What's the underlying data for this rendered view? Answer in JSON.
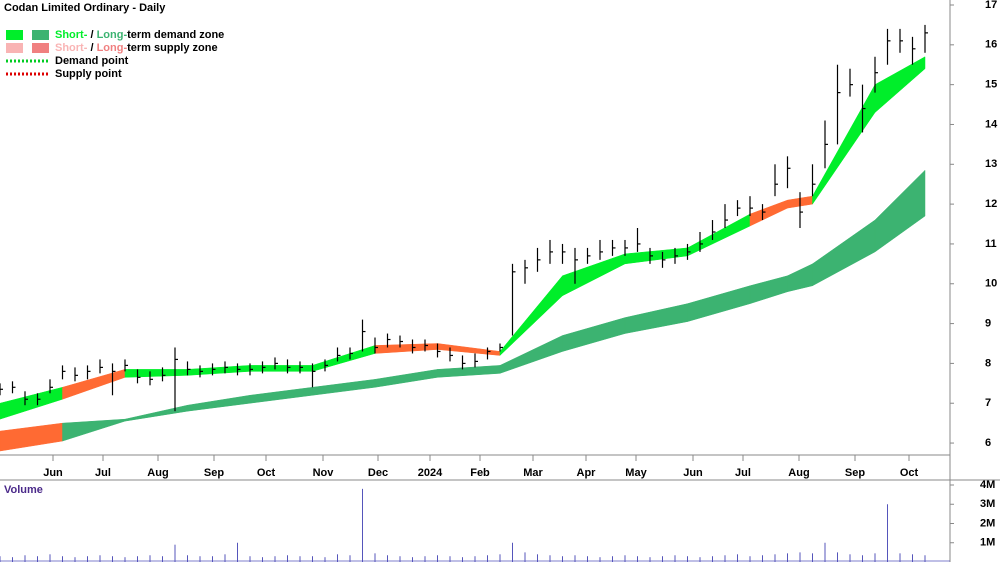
{
  "chart_data": {
    "type": "ohlc",
    "title": "Codan Limited Ordinary - Daily",
    "legend": [
      {
        "swatches": [
          "#00ee2a",
          "#3cb371"
        ],
        "parts": [
          {
            "text": "Short-",
            "color": "#00ee2a"
          },
          {
            "text": " / ",
            "color": "#000000"
          },
          {
            "text": "Long-",
            "color": "#3cb371"
          },
          {
            "text": "term demand zone",
            "color": "#000000"
          }
        ]
      },
      {
        "swatches": [
          "#f9b4b4",
          "#f08080"
        ],
        "parts": [
          {
            "text": "Short-",
            "color": "#f9b4b4"
          },
          {
            "text": " / ",
            "color": "#000000"
          },
          {
            "text": "Long-",
            "color": "#f08080"
          },
          {
            "text": "term supply zone",
            "color": "#000000"
          }
        ]
      },
      {
        "line": "#00cc22",
        "parts": [
          {
            "text": "Demand point",
            "color": "#000000"
          }
        ]
      },
      {
        "line": "#dd0000",
        "parts": [
          {
            "text": "Supply point",
            "color": "#000000"
          }
        ]
      }
    ],
    "x": [
      0,
      1,
      2,
      3,
      4,
      5,
      6,
      7,
      8,
      9,
      10,
      11,
      12,
      13,
      14,
      15,
      16,
      17,
      18,
      19,
      20,
      21,
      22,
      23,
      24,
      25,
      26,
      27,
      28,
      29,
      30,
      31,
      32,
      33,
      34,
      35,
      36,
      37,
      38,
      39,
      40,
      41,
      42,
      43,
      44,
      45,
      46,
      47,
      48,
      49,
      50,
      51,
      52,
      53,
      54,
      55,
      56,
      57,
      58,
      59,
      60,
      61,
      62,
      63,
      64,
      65,
      66,
      67,
      68,
      69,
      70,
      71,
      72,
      73,
      74
    ],
    "xlim": [
      0,
      76
    ],
    "xticks": [
      {
        "value": 4.24,
        "label": "Jun"
      },
      {
        "value": 8.24,
        "label": "Jul"
      },
      {
        "value": 12.64,
        "label": "Aug"
      },
      {
        "value": 17.12,
        "label": "Sep"
      },
      {
        "value": 21.28,
        "label": "Oct"
      },
      {
        "value": 25.84,
        "label": "Nov"
      },
      {
        "value": 30.24,
        "label": "Dec"
      },
      {
        "value": 34.4,
        "label": "2024"
      },
      {
        "value": 38.4,
        "label": "Feb"
      },
      {
        "value": 42.64,
        "label": "Mar"
      },
      {
        "value": 46.88,
        "label": "Apr"
      },
      {
        "value": 50.88,
        "label": "May"
      },
      {
        "value": 55.44,
        "label": "Jun"
      },
      {
        "value": 59.44,
        "label": "Jul"
      },
      {
        "value": 63.92,
        "label": "Aug"
      },
      {
        "value": 68.4,
        "label": "Sep"
      },
      {
        "value": 72.72,
        "label": "Oct"
      }
    ],
    "ylim": [
      5.7,
      17
    ],
    "yticks": [
      6,
      7,
      8,
      9,
      10,
      11,
      12,
      13,
      14,
      15,
      16,
      17
    ],
    "bar_color": "#000000",
    "high": [
      7.5,
      7.55,
      7.3,
      7.25,
      7.6,
      7.95,
      7.9,
      7.95,
      8.1,
      8.0,
      8.1,
      7.85,
      7.8,
      7.9,
      8.4,
      8.05,
      7.95,
      8.0,
      8.05,
      8.0,
      8.0,
      8.05,
      8.15,
      8.1,
      8.05,
      8.0,
      8.1,
      8.4,
      8.4,
      9.1,
      8.65,
      8.75,
      8.7,
      8.6,
      8.6,
      8.5,
      8.4,
      8.2,
      8.25,
      8.4,
      8.5,
      10.5,
      10.6,
      10.9,
      11.1,
      11.0,
      10.9,
      10.9,
      11.1,
      11.1,
      11.1,
      11.4,
      10.9,
      10.8,
      10.9,
      11.0,
      11.3,
      11.6,
      12.0,
      12.1,
      12.2,
      12.0,
      13.0,
      13.2,
      12.3,
      13.0,
      14.1,
      15.5,
      15.4,
      15.0,
      15.7,
      16.4,
      16.4,
      16.2,
      16.5
    ],
    "low": [
      7.2,
      7.25,
      6.95,
      6.95,
      7.25,
      7.6,
      7.55,
      7.6,
      7.75,
      7.2,
      7.8,
      7.5,
      7.45,
      7.55,
      6.8,
      7.7,
      7.65,
      7.7,
      7.75,
      7.7,
      7.7,
      7.75,
      7.85,
      7.75,
      7.75,
      7.4,
      7.8,
      8.05,
      8.1,
      8.3,
      8.25,
      8.4,
      8.4,
      8.25,
      8.3,
      8.15,
      8.05,
      7.85,
      7.9,
      8.1,
      8.3,
      8.7,
      10.0,
      10.3,
      10.5,
      10.5,
      10.0,
      10.5,
      10.6,
      10.7,
      10.7,
      10.8,
      10.5,
      10.4,
      10.5,
      10.6,
      10.8,
      11.1,
      11.4,
      11.7,
      11.7,
      11.6,
      12.2,
      12.4,
      11.4,
      12.2,
      12.9,
      13.5,
      14.7,
      13.8,
      14.8,
      15.5,
      15.8,
      15.5,
      15.8
    ],
    "close": [
      7.35,
      7.4,
      7.1,
      7.1,
      7.4,
      7.8,
      7.7,
      7.8,
      7.9,
      7.8,
      7.95,
      7.65,
      7.6,
      7.7,
      8.1,
      7.85,
      7.8,
      7.85,
      7.9,
      7.85,
      7.85,
      7.9,
      8.0,
      7.9,
      7.9,
      7.8,
      7.95,
      8.2,
      8.25,
      8.8,
      8.4,
      8.6,
      8.55,
      8.4,
      8.45,
      8.3,
      8.2,
      8.0,
      8.05,
      8.3,
      8.4,
      10.3,
      10.4,
      10.6,
      10.8,
      10.8,
      10.6,
      10.7,
      10.8,
      10.9,
      10.9,
      11.0,
      10.7,
      10.6,
      10.7,
      10.8,
      11.0,
      11.3,
      11.6,
      11.9,
      11.9,
      11.8,
      12.5,
      12.9,
      11.8,
      12.5,
      13.5,
      14.8,
      15.0,
      14.4,
      15.3,
      16.1,
      16.1,
      15.9,
      16.3
    ],
    "zone_x": [
      0,
      5,
      10,
      15,
      20,
      25,
      30,
      35,
      40,
      45,
      50,
      55,
      60,
      63,
      65,
      70,
      74
    ],
    "zones": [
      {
        "demand_color": "#3cb371",
        "supply_color": "#ff6a33",
        "upper": [
          6.3,
          6.5,
          6.6,
          6.95,
          7.2,
          7.4,
          7.6,
          7.85,
          7.95,
          8.7,
          9.15,
          9.5,
          9.95,
          10.2,
          10.5,
          11.6,
          12.85
        ],
        "lower": [
          5.8,
          6.05,
          6.55,
          6.8,
          7.0,
          7.2,
          7.4,
          7.65,
          7.75,
          8.3,
          8.75,
          9.05,
          9.5,
          9.8,
          9.95,
          10.8,
          11.7
        ],
        "state": [
          "supply",
          "supply",
          "demand",
          "demand",
          "demand",
          "demand",
          "demand",
          "demand",
          "demand",
          "demand",
          "demand",
          "demand",
          "demand",
          "demand",
          "demand",
          "demand",
          "demand"
        ]
      },
      {
        "demand_color": "#00ee2a",
        "supply_color": "#ff6a33",
        "upper": [
          7.0,
          7.4,
          7.85,
          7.85,
          7.95,
          7.95,
          8.45,
          8.5,
          8.3,
          10.2,
          10.75,
          10.9,
          11.75,
          12.1,
          12.2,
          15.0,
          15.7
        ],
        "lower": [
          6.6,
          7.1,
          7.65,
          7.7,
          7.8,
          7.8,
          8.25,
          8.35,
          8.2,
          9.7,
          10.5,
          10.7,
          11.45,
          11.9,
          12.0,
          14.3,
          15.4
        ],
        "state": [
          "demand",
          "demand",
          "supply",
          "demand",
          "demand",
          "demand",
          "demand",
          "supply",
          "supply",
          "demand",
          "demand",
          "demand",
          "demand",
          "supply",
          "supply",
          "demand",
          "demand"
        ]
      }
    ],
    "volume_title": "Volume",
    "volume_color": "#5555bb",
    "volume": [
      300000,
      250000,
      350000,
      300000,
      400000,
      300000,
      250000,
      300000,
      350000,
      300000,
      250000,
      300000,
      350000,
      300000,
      900000,
      350000,
      300000,
      300000,
      400000,
      1000000,
      300000,
      250000,
      300000,
      350000,
      300000,
      300000,
      250000,
      400000,
      350000,
      3800000,
      450000,
      350000,
      300000,
      250000,
      300000,
      350000,
      300000,
      250000,
      300000,
      350000,
      400000,
      1000000,
      500000,
      400000,
      350000,
      300000,
      350000,
      300000,
      250000,
      300000,
      350000,
      300000,
      250000,
      300000,
      350000,
      300000,
      250000,
      300000,
      350000,
      400000,
      300000,
      350000,
      400000,
      450000,
      500000,
      450000,
      1000000,
      500000,
      400000,
      350000,
      450000,
      3000000,
      450000,
      400000,
      350000
    ],
    "vlim": [
      0,
      4000000
    ],
    "vticks": [
      {
        "value": 1000000,
        "label": "1M"
      },
      {
        "value": 2000000,
        "label": "2M"
      },
      {
        "value": 3000000,
        "label": "3M"
      },
      {
        "value": 4000000,
        "label": "4M"
      }
    ]
  }
}
